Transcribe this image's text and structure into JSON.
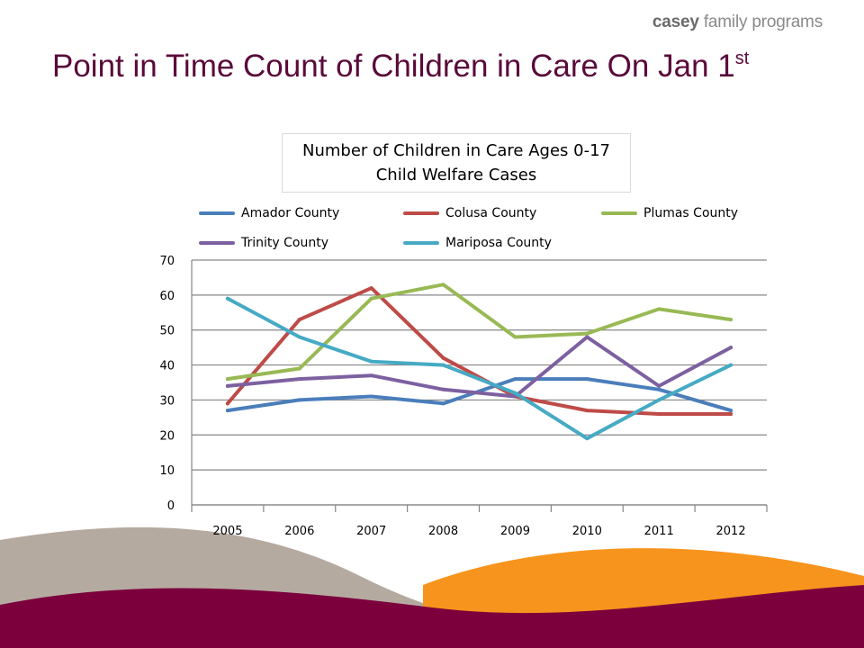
{
  "logo": {
    "bold": "casey",
    "rest": " family programs"
  },
  "slide_title": {
    "main": "Point in Time Count of Children in Care On Jan 1",
    "sup": "st"
  },
  "chart_data": {
    "type": "line",
    "title": "Number of Children in Care Ages 0-17",
    "subtitle": "Child Welfare Cases",
    "categories": [
      "2005",
      "2006",
      "2007",
      "2008",
      "2009",
      "2010",
      "2011",
      "2012"
    ],
    "ylim": [
      0,
      70
    ],
    "yticks": [
      0,
      10,
      20,
      30,
      40,
      50,
      60,
      70
    ],
    "grid": true,
    "legend_position": "top",
    "series": [
      {
        "name": "Amador County",
        "color": "#4a7ebb",
        "values": [
          27,
          30,
          31,
          29,
          36,
          36,
          33,
          27
        ]
      },
      {
        "name": "Colusa County",
        "color": "#be4b48",
        "values": [
          29,
          53,
          62,
          42,
          31,
          27,
          26,
          26
        ]
      },
      {
        "name": "Plumas County",
        "color": "#98b954",
        "values": [
          36,
          39,
          59,
          63,
          48,
          49,
          56,
          53
        ]
      },
      {
        "name": "Trinity County",
        "color": "#7d60a0",
        "values": [
          34,
          36,
          37,
          33,
          31,
          48,
          34,
          45
        ]
      },
      {
        "name": "Mariposa County",
        "color": "#46aac4",
        "values": [
          59,
          48,
          41,
          40,
          32,
          19,
          30,
          40
        ]
      }
    ]
  },
  "decor_colors": {
    "maroon": "#7b003c",
    "orange": "#f7941d",
    "taupe": "#b5aaa0",
    "title": "#5a0a3a"
  }
}
